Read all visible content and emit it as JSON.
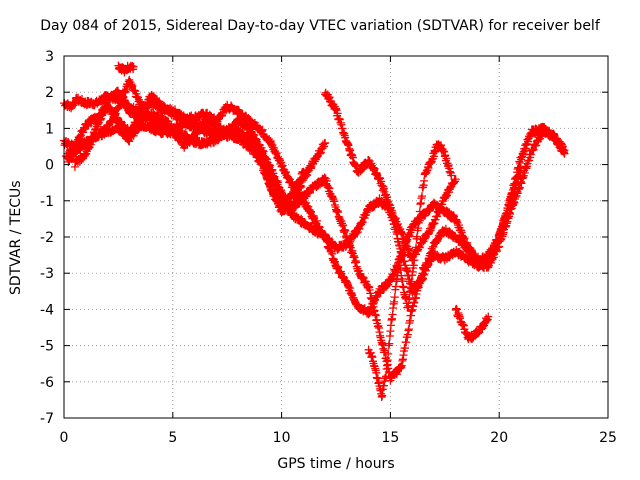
{
  "chart_data": {
    "type": "scatter",
    "title": "Day 084 of 2015, Sidereal Day-to-day VTEC variation (SDTVAR) for receiver belf",
    "xlabel": "GPS time / hours",
    "ylabel": "SDTVAR / TECUs",
    "xlim": [
      0,
      25
    ],
    "ylim": [
      -7,
      3
    ],
    "xticks": [
      0,
      5,
      10,
      15,
      20,
      25
    ],
    "yticks": [
      -7,
      -6,
      -5,
      -4,
      -3,
      -2,
      -1,
      0,
      1,
      2,
      3
    ],
    "grid": true,
    "marker": "+",
    "color": "#ff0000",
    "series": [
      {
        "x": [
          0.0,
          0.3,
          0.6,
          1.0,
          1.5,
          2.0,
          2.5,
          3.0,
          3.5,
          4.0,
          4.5,
          5.0,
          5.5,
          6.0,
          6.5,
          7.0,
          7.5,
          8.0,
          8.5,
          9.0,
          9.5,
          10.0,
          10.5,
          11.0,
          11.5,
          12.0,
          12.5,
          13.0,
          13.5,
          14.0,
          14.5,
          15.0,
          15.5,
          16.0,
          16.5,
          17.0,
          17.5,
          18.0,
          18.5,
          19.0,
          19.5,
          20.0,
          20.5,
          21.0,
          21.5,
          22.0,
          22.5,
          23.0
        ],
        "y": [
          1.7,
          1.6,
          1.8,
          1.7,
          1.7,
          1.9,
          1.8,
          1.6,
          1.5,
          1.7,
          1.5,
          1.5,
          1.3,
          1.3,
          1.4,
          1.2,
          1.6,
          1.5,
          1.2,
          1.0,
          0.6,
          0.0,
          -0.6,
          -1.0,
          -1.5,
          -2.0,
          -2.8,
          -3.3,
          -3.9,
          -4.1,
          -3.5,
          -3.2,
          -2.5,
          -1.7,
          -1.4,
          -1.1,
          -1.3,
          -1.5,
          -2.2,
          -2.7,
          -2.5,
          -2.0,
          -1.0,
          0.2,
          0.9,
          1.0,
          0.8,
          0.3
        ]
      },
      {
        "x": [
          0.0,
          0.5,
          1.0,
          1.5,
          2.0,
          2.5,
          3.0,
          3.5,
          4.0,
          4.5,
          5.0,
          5.5,
          6.0,
          6.5,
          7.0,
          7.5,
          8.0,
          8.5,
          9.0,
          9.5,
          10.0,
          10.5,
          11.0,
          11.5,
          12.0,
          12.5,
          13.0,
          13.5,
          14.0,
          14.5,
          15.0,
          15.5,
          16.0,
          16.5,
          17.0,
          17.5,
          18.0,
          18.5,
          19.0,
          19.5,
          20.0,
          20.5,
          21.0,
          21.5,
          22.0,
          22.5,
          23.0
        ],
        "y": [
          0.6,
          0.5,
          0.6,
          0.8,
          1.0,
          1.6,
          2.3,
          1.7,
          1.2,
          1.1,
          1.0,
          1.1,
          1.2,
          0.9,
          0.8,
          1.0,
          0.9,
          0.6,
          0.2,
          -0.3,
          -0.9,
          -1.4,
          -1.6,
          -1.8,
          -2.0,
          -2.3,
          -2.2,
          -1.8,
          -1.2,
          -1.0,
          -1.3,
          -2.4,
          -3.5,
          -3.1,
          -2.2,
          -1.8,
          -2.0,
          -2.3,
          -2.6,
          -2.8,
          -2.2,
          -1.3,
          -0.5,
          0.4,
          0.9,
          0.8,
          0.4
        ]
      },
      {
        "x": [
          0.1,
          0.5,
          1.0,
          1.5,
          2.0,
          2.5,
          3.0,
          3.5,
          4.0,
          4.5,
          5.0,
          5.5,
          6.0,
          6.5,
          7.0,
          7.5,
          8.0,
          8.5,
          9.0,
          9.5,
          10.0,
          10.5,
          11.0,
          11.5,
          12.0,
          12.5,
          13.0,
          13.5,
          14.0,
          14.5,
          15.0,
          15.5,
          16.0,
          16.5,
          17.0,
          17.5,
          18.0,
          18.5,
          19.0,
          19.5,
          20.0,
          20.5,
          21.0
        ],
        "y": [
          0.2,
          0.5,
          1.1,
          1.3,
          1.6,
          1.2,
          0.9,
          1.3,
          1.9,
          1.6,
          1.4,
          1.2,
          1.0,
          1.0,
          0.8,
          0.9,
          0.7,
          0.5,
          0.1,
          -0.6,
          -1.3,
          -1.2,
          -0.9,
          -0.6,
          -0.4,
          -1.2,
          -2.0,
          -2.9,
          -3.4,
          -4.6,
          -5.9,
          -5.6,
          -4.0,
          -2.9,
          -2.5,
          -2.6,
          -2.4,
          -2.6,
          -2.8,
          -2.8,
          -2.0,
          -1.0,
          -0.1
        ]
      },
      {
        "x": [
          0.2,
          0.6,
          1.0,
          1.5,
          2.0,
          2.5,
          3.0,
          3.5,
          4.0,
          4.5,
          5.0,
          5.5,
          6.0,
          6.5,
          7.0,
          7.5,
          8.0,
          8.5,
          9.0,
          9.5,
          10.0,
          10.5,
          11.0,
          11.5,
          12.0
        ],
        "y": [
          0.1,
          0.4,
          0.6,
          0.8,
          0.9,
          1.0,
          0.7,
          1.1,
          1.0,
          0.9,
          0.9,
          0.8,
          0.6,
          0.6,
          0.7,
          0.9,
          1.2,
          1.0,
          0.5,
          -0.1,
          -0.8,
          -1.2,
          -0.4,
          0.1,
          0.6
        ]
      },
      {
        "x": [
          0.5,
          1.0,
          1.5,
          2.0,
          2.5,
          3.0,
          3.5,
          4.0,
          4.5,
          5.0,
          5.5,
          6.0,
          6.5,
          7.0,
          7.5,
          8.0,
          8.5,
          9.0,
          9.5,
          10.0,
          10.5,
          11.0
        ],
        "y": [
          0.0,
          0.3,
          1.0,
          1.8,
          2.0,
          1.5,
          1.2,
          1.4,
          1.3,
          1.0,
          0.5,
          0.8,
          1.2,
          1.1,
          0.8,
          0.9,
          0.7,
          0.3,
          -0.7,
          -1.2,
          -0.8,
          -0.2
        ]
      },
      {
        "x": [
          14.0,
          14.2,
          14.4,
          14.6,
          14.8,
          15.0,
          15.2,
          15.4,
          15.6,
          15.8,
          16.0,
          16.2,
          16.4,
          16.6,
          16.8,
          17.0,
          17.2,
          17.4,
          17.6,
          17.8
        ],
        "y": [
          -5.1,
          -5.4,
          -5.9,
          -6.4,
          -5.8,
          -4.6,
          -3.6,
          -2.7,
          -3.4,
          -4.0,
          -3.1,
          -2.1,
          -1.0,
          -0.2,
          0.0,
          0.3,
          0.6,
          0.4,
          0.1,
          -0.3
        ]
      },
      {
        "x": [
          12.0,
          12.5,
          13.0,
          13.5,
          14.0,
          14.5,
          15.0,
          15.5,
          16.0,
          16.5,
          17.0,
          17.5,
          18.0
        ],
        "y": [
          2.0,
          1.5,
          0.6,
          -0.2,
          0.1,
          -0.4,
          -1.2,
          -1.9,
          -2.6,
          -2.1,
          -1.6,
          -0.9,
          -0.4
        ]
      },
      {
        "x": [
          18.0,
          18.3,
          18.6,
          18.9,
          19.2,
          19.5
        ],
        "y": [
          -4.0,
          -4.4,
          -4.8,
          -4.7,
          -4.5,
          -4.2
        ]
      },
      {
        "x": [
          2.5,
          2.8,
          3.0,
          3.2
        ],
        "y": [
          2.7,
          2.6,
          2.7,
          2.7
        ]
      }
    ]
  }
}
